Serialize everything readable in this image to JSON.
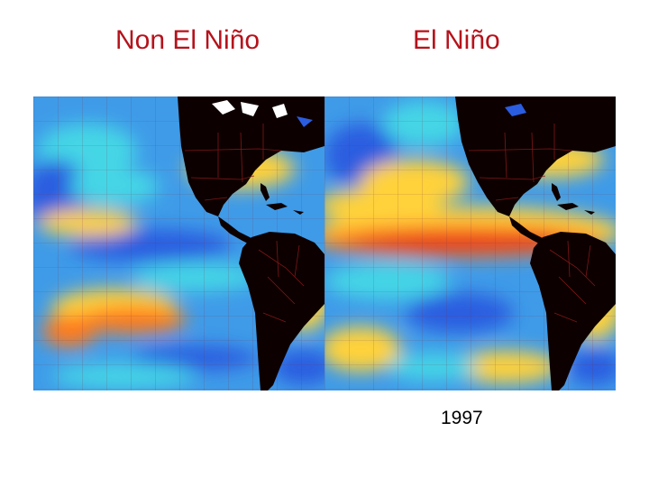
{
  "slide": {
    "left_title": "Non El Niño",
    "right_title": "El Niño",
    "year_caption": "1997"
  },
  "colors": {
    "title_color": "#b5121b",
    "land": "#0d0000",
    "borders": "#8a1a1a",
    "ocean_base": "#3f9be8",
    "cool": "#2a5de0",
    "mild": "#44d6e6",
    "warm": "#ffd23a",
    "hot": "#ff7a1a",
    "very_hot": "#e3221a"
  }
}
